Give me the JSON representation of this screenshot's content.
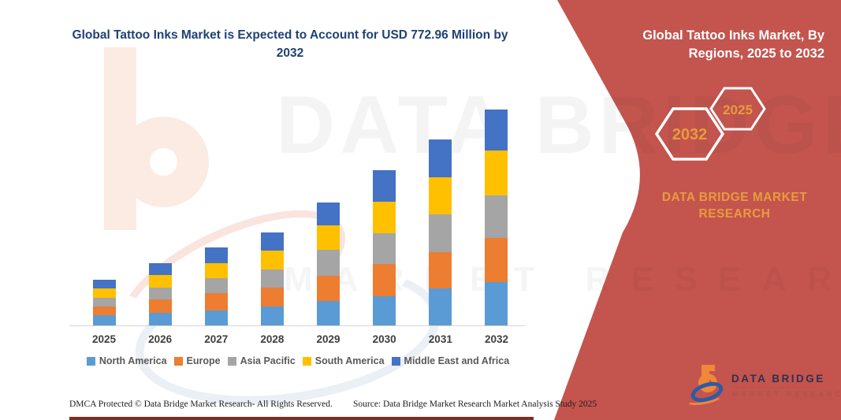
{
  "title": "Global Tattoo Inks Market is Expected to Account for USD 772.96 Million by 2032",
  "chart_data": {
    "type": "bar",
    "stacked": true,
    "title": "Global Tattoo Inks Market is Expected to Account for USD 772.96 Million by 2032",
    "categories": [
      "2025",
      "2026",
      "2027",
      "2028",
      "2029",
      "2030",
      "2031",
      "2032"
    ],
    "series": [
      {
        "name": "North America",
        "color": "#5B9BD5",
        "values": [
          12.7,
          16.0,
          18.7,
          24.0,
          31.3,
          37.3,
          46.7,
          55.0
        ]
      },
      {
        "name": "Europe",
        "color": "#ED7D31",
        "values": [
          11.7,
          17.3,
          22.3,
          24.0,
          32.0,
          40.7,
          46.7,
          56.0
        ]
      },
      {
        "name": "Asia Pacific",
        "color": "#A5A5A5",
        "values": [
          10.7,
          14.3,
          19.0,
          23.5,
          32.3,
          38.7,
          47.7,
          54.0
        ]
      },
      {
        "name": "South America",
        "color": "#FFC000",
        "values": [
          11.7,
          16.7,
          19.3,
          23.5,
          31.0,
          40.7,
          46.7,
          56.7
        ]
      },
      {
        "name": "Middle East and Africa",
        "color": "#4472C4",
        "values": [
          11.7,
          15.0,
          20.0,
          23.5,
          29.7,
          40.0,
          48.0,
          52.7
        ]
      }
    ],
    "stack_totals": [
      58.5,
      79.3,
      99.3,
      118.5,
      156.3,
      197.4,
      235.8,
      274.4
    ],
    "xlabel": "",
    "ylabel": "",
    "value_axis_shown": false,
    "units_note": "values are relative heights in px; no numeric value axis is shown in the figure",
    "grid": false,
    "legend_position": "bottom"
  },
  "right_panel": {
    "heading": "Global Tattoo Inks Market, By Regions, 2025 to 2032",
    "hexagons": [
      {
        "label": "2032"
      },
      {
        "label": "2025"
      }
    ],
    "brand": "DATA BRIDGE MARKET RESEARCH",
    "panel_color": "#C4544E",
    "accent_color": "#E79C3D"
  },
  "logo": {
    "name": "DATA BRIDGE",
    "subtitle": "MARKET RESEARCH"
  },
  "footer": {
    "dmca": "DMCA Protected © Data Bridge Market Research-  All Rights Reserved.",
    "source": "Source: Data Bridge Market Research  Market Analysis Study 2025"
  },
  "watermark": {
    "line1": "DATA BRIDGE",
    "line2": "MARKET RESEARCH"
  }
}
